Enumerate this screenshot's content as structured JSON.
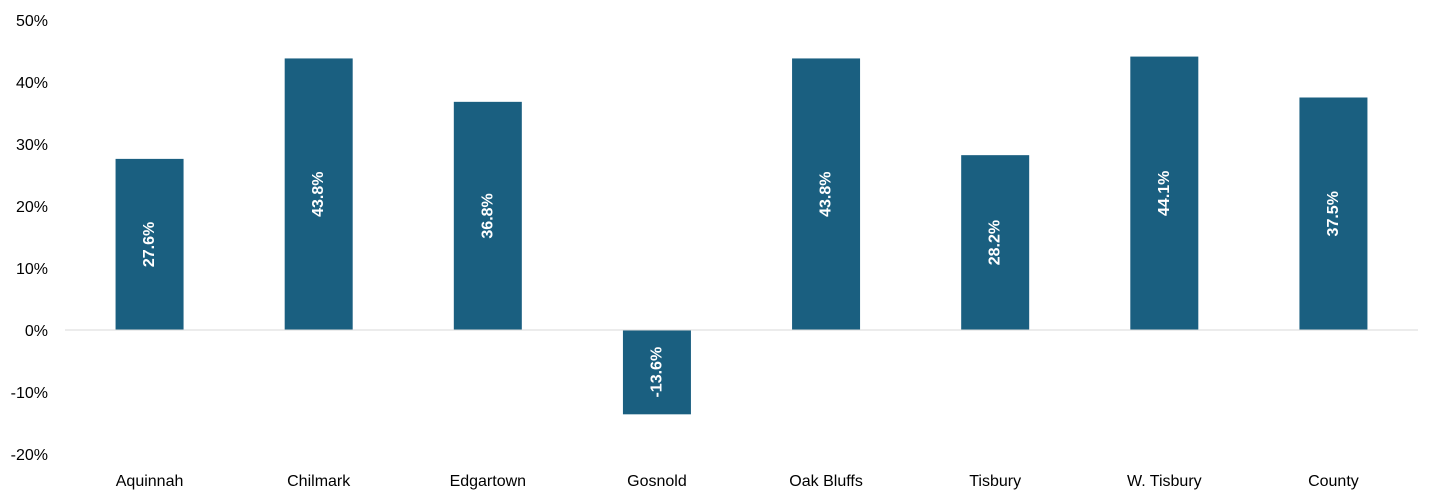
{
  "chart_data": {
    "type": "bar",
    "title": "",
    "xlabel": "",
    "ylabel": "",
    "categories": [
      "Aquinnah",
      "Chilmark",
      "Edgartown",
      "Gosnold",
      "Oak Bluffs",
      "Tisbury",
      "W. Tisbury",
      "County"
    ],
    "values": [
      27.6,
      43.8,
      36.8,
      -13.6,
      43.8,
      28.2,
      44.1,
      37.5
    ],
    "data_labels": [
      "27.6%",
      "43.8%",
      "36.8%",
      "-13.6%",
      "43.8%",
      "28.2%",
      "44.1%",
      "37.5%"
    ],
    "ylim": [
      -20,
      50
    ],
    "y_ticks": [
      50,
      40,
      30,
      20,
      10,
      0,
      -10,
      -20
    ],
    "y_tick_labels": [
      "50%",
      "40%",
      "30%",
      "20%",
      "10%",
      "0%",
      "-10%",
      "-20%"
    ],
    "grid": false,
    "legend": "none",
    "bar_color": "#1a5f80",
    "axis_color": "#d9d9d9"
  }
}
